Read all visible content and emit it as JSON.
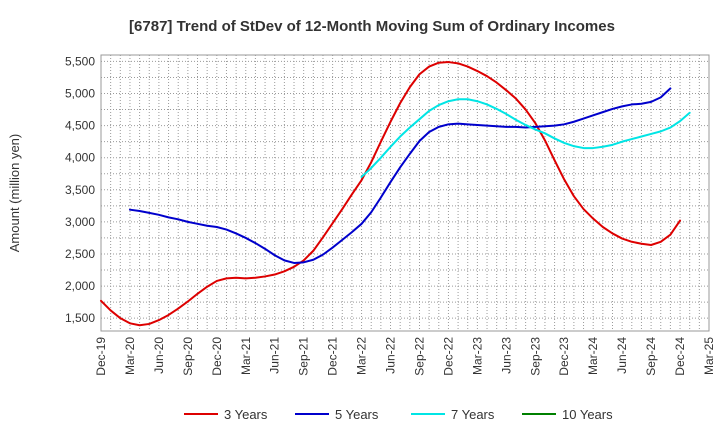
{
  "chart_data": {
    "type": "line",
    "title": "[6787]  Trend of StDev of 12-Month Moving Sum of Ordinary Incomes",
    "xlabel": "",
    "ylabel": "Amount (million yen)",
    "ylim": [
      1300,
      5600
    ],
    "yticks": [
      1500,
      2000,
      2500,
      3000,
      3500,
      4000,
      4500,
      5000,
      5500
    ],
    "ytick_labels": [
      "1,500",
      "2,000",
      "2,500",
      "3,000",
      "3,500",
      "4,000",
      "4,500",
      "5,000",
      "5,500"
    ],
    "x_tick_labels": [
      "Dec-19",
      "Mar-20",
      "Jun-20",
      "Sep-20",
      "Dec-20",
      "Mar-21",
      "Jun-21",
      "Sep-21",
      "Dec-21",
      "Mar-22",
      "Jun-22",
      "Sep-22",
      "Dec-22",
      "Mar-23",
      "Jun-23",
      "Sep-23",
      "Dec-23",
      "Mar-24",
      "Jun-24",
      "Sep-24",
      "Dec-24",
      "Mar-25"
    ],
    "grid": true,
    "legend_position": "bottom",
    "series": [
      {
        "name": "3 Years",
        "color": "#dd0000",
        "start_index": 0,
        "values": [
          1770,
          1620,
          1500,
          1420,
          1390,
          1410,
          1470,
          1550,
          1650,
          1760,
          1880,
          1990,
          2080,
          2120,
          2130,
          2120,
          2130,
          2150,
          2180,
          2230,
          2300,
          2400,
          2550,
          2760,
          2980,
          3200,
          3430,
          3650,
          3930,
          4250,
          4560,
          4850,
          5100,
          5300,
          5420,
          5480,
          5490,
          5470,
          5420,
          5350,
          5270,
          5170,
          5050,
          4920,
          4750,
          4540,
          4270,
          3960,
          3660,
          3400,
          3200,
          3050,
          2920,
          2820,
          2740,
          2690,
          2660,
          2640,
          2690,
          2800,
          3020
        ]
      },
      {
        "name": "5 Years",
        "color": "#0000cc",
        "start_index": 3,
        "values": [
          3190,
          3170,
          3140,
          3110,
          3070,
          3040,
          3000,
          2970,
          2940,
          2920,
          2880,
          2820,
          2750,
          2670,
          2580,
          2480,
          2400,
          2360,
          2370,
          2410,
          2490,
          2600,
          2720,
          2840,
          2970,
          3150,
          3380,
          3620,
          3850,
          4060,
          4260,
          4400,
          4480,
          4520,
          4530,
          4520,
          4510,
          4500,
          4490,
          4480,
          4480,
          4470,
          4480,
          4490,
          4500,
          4520,
          4560,
          4610,
          4660,
          4710,
          4760,
          4800,
          4830,
          4840,
          4870,
          4940,
          5080
        ]
      },
      {
        "name": "7 Years",
        "color": "#00e5e5",
        "start_index": 27,
        "values": [
          3700,
          3840,
          4000,
          4170,
          4330,
          4470,
          4600,
          4730,
          4820,
          4880,
          4910,
          4910,
          4880,
          4830,
          4760,
          4680,
          4590,
          4510,
          4440,
          4380,
          4300,
          4230,
          4180,
          4150,
          4150,
          4170,
          4200,
          4250,
          4290,
          4330,
          4370,
          4410,
          4470,
          4570,
          4700
        ]
      },
      {
        "name": "10 Years",
        "color": "#008000",
        "start_index": 0,
        "values": []
      }
    ]
  }
}
